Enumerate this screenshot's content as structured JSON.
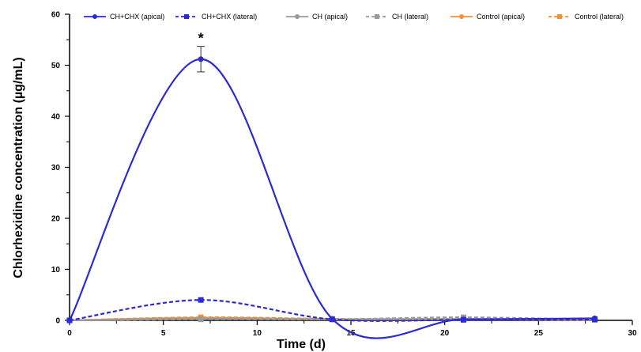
{
  "chart_data": {
    "type": "line",
    "title": "",
    "xlabel": "Time (d)",
    "ylabel": "Chlorhexidine concentration (µg/mL)",
    "xlim": [
      0,
      30
    ],
    "ylim": [
      0,
      60
    ],
    "x_ticks": [
      0,
      5,
      10,
      15,
      20,
      25,
      30
    ],
    "y_ticks": [
      0,
      10,
      20,
      30,
      40,
      50,
      60
    ],
    "grid": false,
    "legend": "top",
    "annotations": [
      {
        "text": "*",
        "x": 7,
        "y": 55
      }
    ],
    "series": [
      {
        "name": "CH+CHX (apical)",
        "color": "#2b2bd6",
        "dash": false,
        "marker": "circle",
        "x": [
          0,
          7,
          14,
          21,
          28
        ],
        "y": [
          0,
          51.2,
          0.3,
          0.2,
          0.4
        ],
        "error": [
          0,
          2.5,
          0,
          0,
          0
        ]
      },
      {
        "name": "CH+CHX (lateral)",
        "color": "#2b2bd6",
        "dash": true,
        "marker": "square",
        "x": [
          0,
          7,
          14,
          21,
          28
        ],
        "y": [
          0,
          4.0,
          0.2,
          0.1,
          0.2
        ]
      },
      {
        "name": "CH (apical)",
        "color": "#9a9a9a",
        "dash": false,
        "marker": "circle",
        "x": [
          0,
          7,
          14,
          21,
          28
        ],
        "y": [
          0,
          0.3,
          0.2,
          0.3,
          0.2
        ]
      },
      {
        "name": "CH (lateral)",
        "color": "#9a9a9a",
        "dash": true,
        "marker": "square",
        "x": [
          0,
          7,
          14,
          21,
          28
        ],
        "y": [
          0,
          0.2,
          0.2,
          0.6,
          0.1
        ]
      },
      {
        "name": "Control (apical)",
        "color": "#f0903a",
        "dash": false,
        "marker": "circle",
        "x": [
          0,
          7,
          14,
          21,
          28
        ],
        "y": [
          0,
          0.5,
          0.2,
          0.2,
          0.1
        ]
      },
      {
        "name": "Control (lateral)",
        "color": "#f0903a",
        "dash": true,
        "marker": "square",
        "x": [
          0,
          7,
          14,
          21,
          28
        ],
        "y": [
          0,
          0.6,
          0.3,
          0.2,
          0.1
        ]
      }
    ]
  }
}
